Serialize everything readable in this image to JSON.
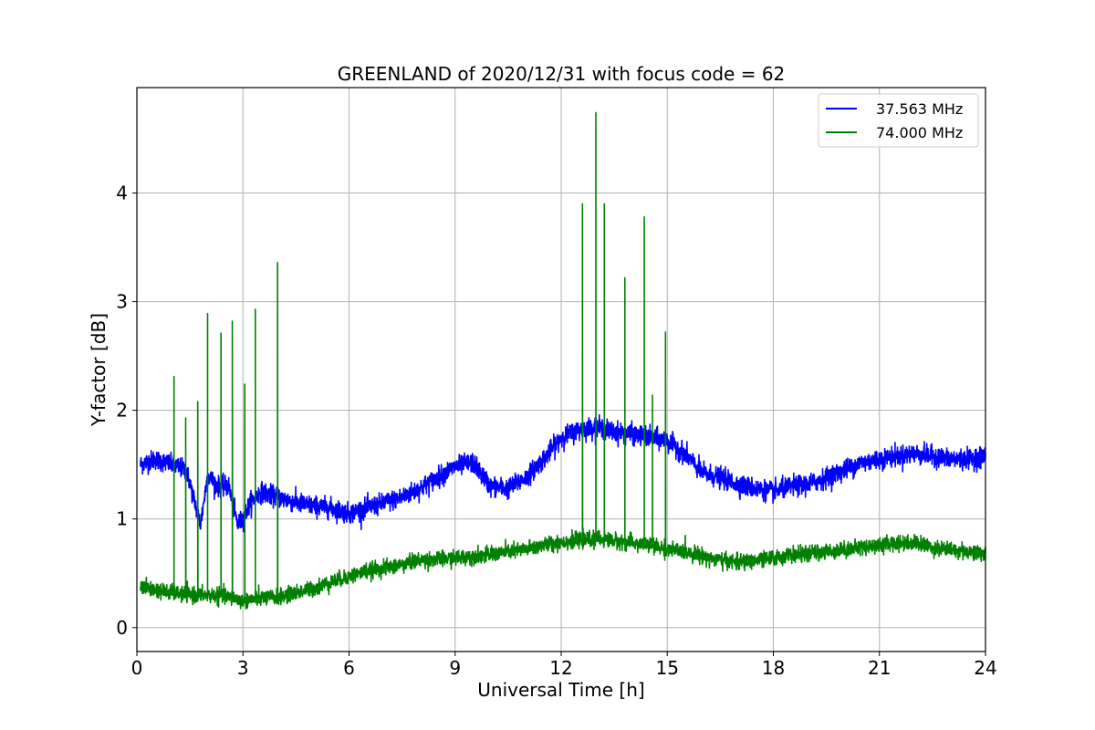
{
  "chart_data": {
    "type": "line",
    "title": "GREENLAND of 2020/12/31 with focus code = 62",
    "xlabel": "Universal Time [h]",
    "ylabel": "Y-factor [dB]",
    "xlim": [
      0,
      24
    ],
    "ylim": [
      -0.22,
      4.97
    ],
    "xticks": [
      0,
      3,
      6,
      9,
      12,
      15,
      18,
      21,
      24
    ],
    "yticks": [
      0,
      1,
      2,
      3,
      4
    ],
    "grid": true,
    "legend_position": "top-right",
    "series": [
      {
        "name": "37.563 MHz",
        "color": "#0000ff",
        "x": [
          0.1,
          0.5,
          1.0,
          1.4,
          1.6,
          1.8,
          2.0,
          2.3,
          2.6,
          2.85,
          3.0,
          3.2,
          3.5,
          4.0,
          4.5,
          5.0,
          5.5,
          6.0,
          6.5,
          7.0,
          7.5,
          8.0,
          8.5,
          9.0,
          9.5,
          10.0,
          10.5,
          11.0,
          11.5,
          12.0,
          12.5,
          13.0,
          13.5,
          14.0,
          14.5,
          15.0,
          15.5,
          16.0,
          16.5,
          17.0,
          17.5,
          18.0,
          18.5,
          19.0,
          19.5,
          20.0,
          20.5,
          21.0,
          21.5,
          22.0,
          22.5,
          23.0,
          23.5,
          24.0
        ],
        "y": [
          1.5,
          1.55,
          1.5,
          1.45,
          1.2,
          0.95,
          1.4,
          1.3,
          1.3,
          0.95,
          1.0,
          1.15,
          1.25,
          1.2,
          1.15,
          1.12,
          1.1,
          1.05,
          1.1,
          1.15,
          1.2,
          1.28,
          1.38,
          1.48,
          1.52,
          1.3,
          1.28,
          1.38,
          1.55,
          1.75,
          1.82,
          1.85,
          1.8,
          1.78,
          1.75,
          1.72,
          1.6,
          1.42,
          1.38,
          1.32,
          1.28,
          1.25,
          1.3,
          1.32,
          1.38,
          1.45,
          1.52,
          1.55,
          1.58,
          1.6,
          1.58,
          1.55,
          1.55,
          1.58
        ],
        "noise": 0.09,
        "spikes": []
      },
      {
        "name": "74.000 MHz",
        "color": "#008000",
        "x": [
          0.1,
          0.5,
          1.0,
          1.5,
          2.0,
          2.5,
          3.0,
          3.5,
          4.0,
          4.5,
          5.0,
          5.5,
          6.0,
          6.5,
          7.0,
          7.5,
          8.0,
          8.5,
          9.0,
          9.5,
          10.0,
          10.5,
          11.0,
          11.5,
          12.0,
          12.5,
          13.0,
          13.5,
          14.0,
          14.5,
          15.0,
          15.5,
          16.0,
          16.5,
          17.0,
          17.5,
          18.0,
          18.5,
          19.0,
          19.5,
          20.0,
          20.5,
          21.0,
          21.5,
          22.0,
          22.5,
          23.0,
          23.5,
          24.0
        ],
        "y": [
          0.38,
          0.35,
          0.32,
          0.3,
          0.3,
          0.29,
          0.25,
          0.27,
          0.28,
          0.32,
          0.36,
          0.42,
          0.47,
          0.52,
          0.55,
          0.58,
          0.62,
          0.63,
          0.64,
          0.66,
          0.67,
          0.7,
          0.72,
          0.76,
          0.79,
          0.8,
          0.82,
          0.8,
          0.78,
          0.76,
          0.72,
          0.7,
          0.66,
          0.62,
          0.6,
          0.62,
          0.64,
          0.67,
          0.68,
          0.7,
          0.72,
          0.74,
          0.76,
          0.78,
          0.78,
          0.74,
          0.72,
          0.7,
          0.68
        ],
        "noise": 0.07,
        "spikes": [
          [
            1.05,
            2.31
          ],
          [
            1.38,
            1.93
          ],
          [
            1.72,
            2.08
          ],
          [
            2.0,
            2.89
          ],
          [
            2.38,
            2.71
          ],
          [
            2.7,
            2.82
          ],
          [
            3.05,
            2.24
          ],
          [
            3.35,
            2.93
          ],
          [
            3.98,
            3.36
          ],
          [
            12.6,
            3.9
          ],
          [
            12.98,
            4.74
          ],
          [
            13.22,
            3.9
          ],
          [
            13.8,
            3.22
          ],
          [
            14.35,
            3.78
          ],
          [
            14.58,
            2.14
          ],
          [
            14.95,
            2.72
          ]
        ]
      }
    ]
  }
}
